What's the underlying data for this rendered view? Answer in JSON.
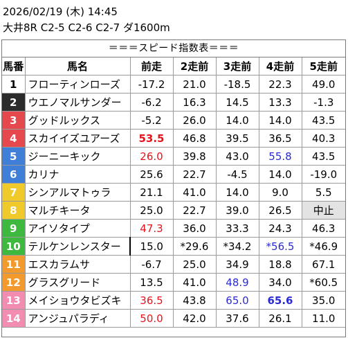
{
  "header": {
    "datetime": "2026/02/19 (木) 14:45",
    "race": "大井8R C2-5 C2-6 C2-7 ダ1600m"
  },
  "table": {
    "caption": "＝＝＝スピード指数表＝＝＝",
    "columns": [
      "馬番",
      "馬名",
      "前走",
      "2走前",
      "3走前",
      "4走前",
      "5走前"
    ],
    "rows": [
      {
        "no": "1",
        "name": "フローティンローズ",
        "v": [
          "-17.2",
          "21.0",
          "-18.5",
          "22.3",
          "49.0"
        ]
      },
      {
        "no": "2",
        "name": "ウエノマルサンダー",
        "v": [
          "-6.2",
          "16.3",
          "14.5",
          "13.3",
          "-1.3"
        ]
      },
      {
        "no": "3",
        "name": "グッドルックス",
        "v": [
          "-5.2",
          "26.0",
          "14.0",
          "14.0",
          "43.5"
        ]
      },
      {
        "no": "4",
        "name": "スカイイズユアーズ",
        "v": [
          "53.5",
          "46.8",
          "39.5",
          "36.5",
          "40.3"
        ]
      },
      {
        "no": "5",
        "name": "ジーニーキック",
        "v": [
          "26.0",
          "39.8",
          "43.0",
          "55.8",
          "43.5"
        ]
      },
      {
        "no": "6",
        "name": "カリナ",
        "v": [
          "25.6",
          "22.7",
          "-4.5",
          "14.0",
          "-19.0"
        ]
      },
      {
        "no": "7",
        "name": "シンアルマトゥラ",
        "v": [
          "21.1",
          "41.0",
          "14.0",
          "9.0",
          "5.5"
        ]
      },
      {
        "no": "8",
        "name": "マルチキータ",
        "v": [
          "25.0",
          "22.7",
          "39.0",
          "26.5",
          "中止"
        ]
      },
      {
        "no": "9",
        "name": "アイソタイプ",
        "v": [
          "47.3",
          "36.0",
          "33.3",
          "24.3",
          "46.3"
        ]
      },
      {
        "no": "10",
        "name": "テルケンレンスター",
        "v": [
          "15.0",
          "*29.6",
          "*34.2",
          "*56.5",
          "*46.9"
        ]
      },
      {
        "no": "11",
        "name": "エスカラムサ",
        "v": [
          "-6.7",
          "25.0",
          "34.9",
          "18.8",
          "67.1"
        ]
      },
      {
        "no": "12",
        "name": "グラスグリード",
        "v": [
          "13.5",
          "41.0",
          "48.9",
          "34.0",
          "*60.5"
        ]
      },
      {
        "no": "13",
        "name": "メイショウタビズキ",
        "v": [
          "36.5",
          "43.8",
          "65.0",
          "65.6",
          "35.0"
        ]
      },
      {
        "no": "14",
        "name": "アンジュパラディ",
        "v": [
          "50.0",
          "42.0",
          "37.6",
          "26.1",
          "11.0"
        ]
      }
    ]
  },
  "colors": {
    "frame_colors": [
      "#ffffff",
      "#2b2b2b",
      "#e5484d",
      "#e5484d",
      "#3f7fd8",
      "#3f7fd8",
      "#f0c92a",
      "#f0c92a",
      "#3fb83f",
      "#3fb83f",
      "#f39a2e",
      "#f39a2e",
      "#f28cb0",
      "#f28cb0"
    ],
    "frame_text": [
      "#000000",
      "#ffffff",
      "#ffffff",
      "#ffffff",
      "#ffffff",
      "#ffffff",
      "#ffffff",
      "#ffffff",
      "#ffffff",
      "#ffffff",
      "#ffffff",
      "#ffffff",
      "#ffffff",
      "#ffffff"
    ],
    "red": "#e8121c",
    "blue": "#2b2bd6"
  },
  "cell_styles": {
    "3-0": "red bold",
    "4-0": "red",
    "4-3": "blue",
    "7-4": "grey",
    "8-0": "red",
    "9-3": "blue",
    "11-2": "blue",
    "12-0": "red",
    "12-2": "blue",
    "12-3": "blue bold",
    "13-0": "red"
  }
}
